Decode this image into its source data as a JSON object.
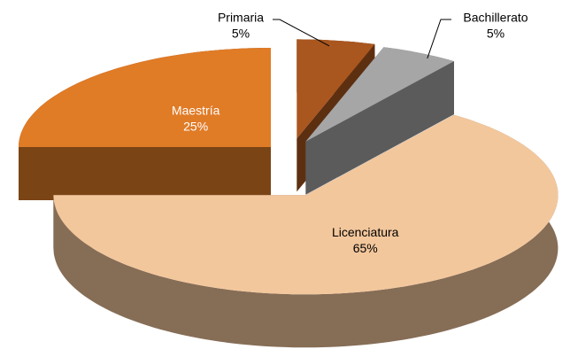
{
  "chart_data": {
    "type": "pie3d",
    "categories": [
      "Primaria",
      "Bachillerato",
      "Licenciatura",
      "Maestría"
    ],
    "values": [
      5,
      5,
      65,
      25
    ],
    "value_labels": [
      "5%",
      "5%",
      "65%",
      "25%"
    ],
    "colors": [
      "#a9561f",
      "#a6a6a6",
      "#f3c79c",
      "#e07b26"
    ]
  }
}
